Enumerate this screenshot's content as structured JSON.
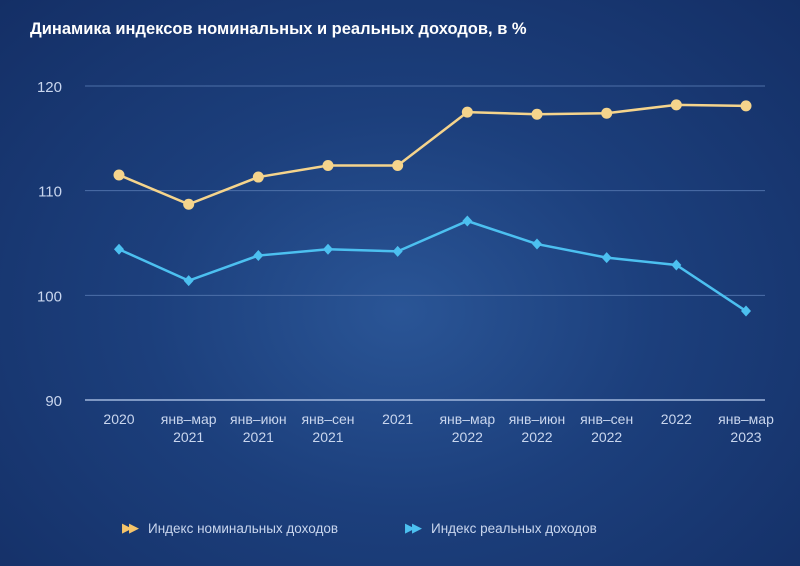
{
  "chart_data": {
    "type": "line",
    "title": "Динамика индексов номинальных и реальных доходов, в %",
    "categories": [
      [
        "2020"
      ],
      [
        "янв–мар",
        "2021"
      ],
      [
        "янв–июн",
        "2021"
      ],
      [
        "янв–сен",
        "2021"
      ],
      [
        "2021"
      ],
      [
        "янв–мар",
        "2022"
      ],
      [
        "янв–июн",
        "2022"
      ],
      [
        "янв–сен",
        "2022"
      ],
      [
        "2022"
      ],
      [
        "янв–мар",
        "2023"
      ]
    ],
    "ylim": [
      90,
      120
    ],
    "yticks": [
      90,
      100,
      110,
      120
    ],
    "grid": true,
    "legend_position": "bottom",
    "series": [
      {
        "name": "Индекс номинальных доходов",
        "color": "#f5d48c",
        "marker": "circle",
        "values": [
          111.5,
          108.7,
          111.3,
          112.4,
          112.4,
          117.5,
          117.3,
          117.4,
          118.2,
          118.1
        ]
      },
      {
        "name": "Индекс реальных доходов",
        "color": "#4cc0f0",
        "marker": "diamond",
        "values": [
          104.4,
          101.4,
          103.8,
          104.4,
          104.2,
          107.1,
          104.9,
          103.6,
          102.9,
          98.5
        ]
      }
    ]
  }
}
